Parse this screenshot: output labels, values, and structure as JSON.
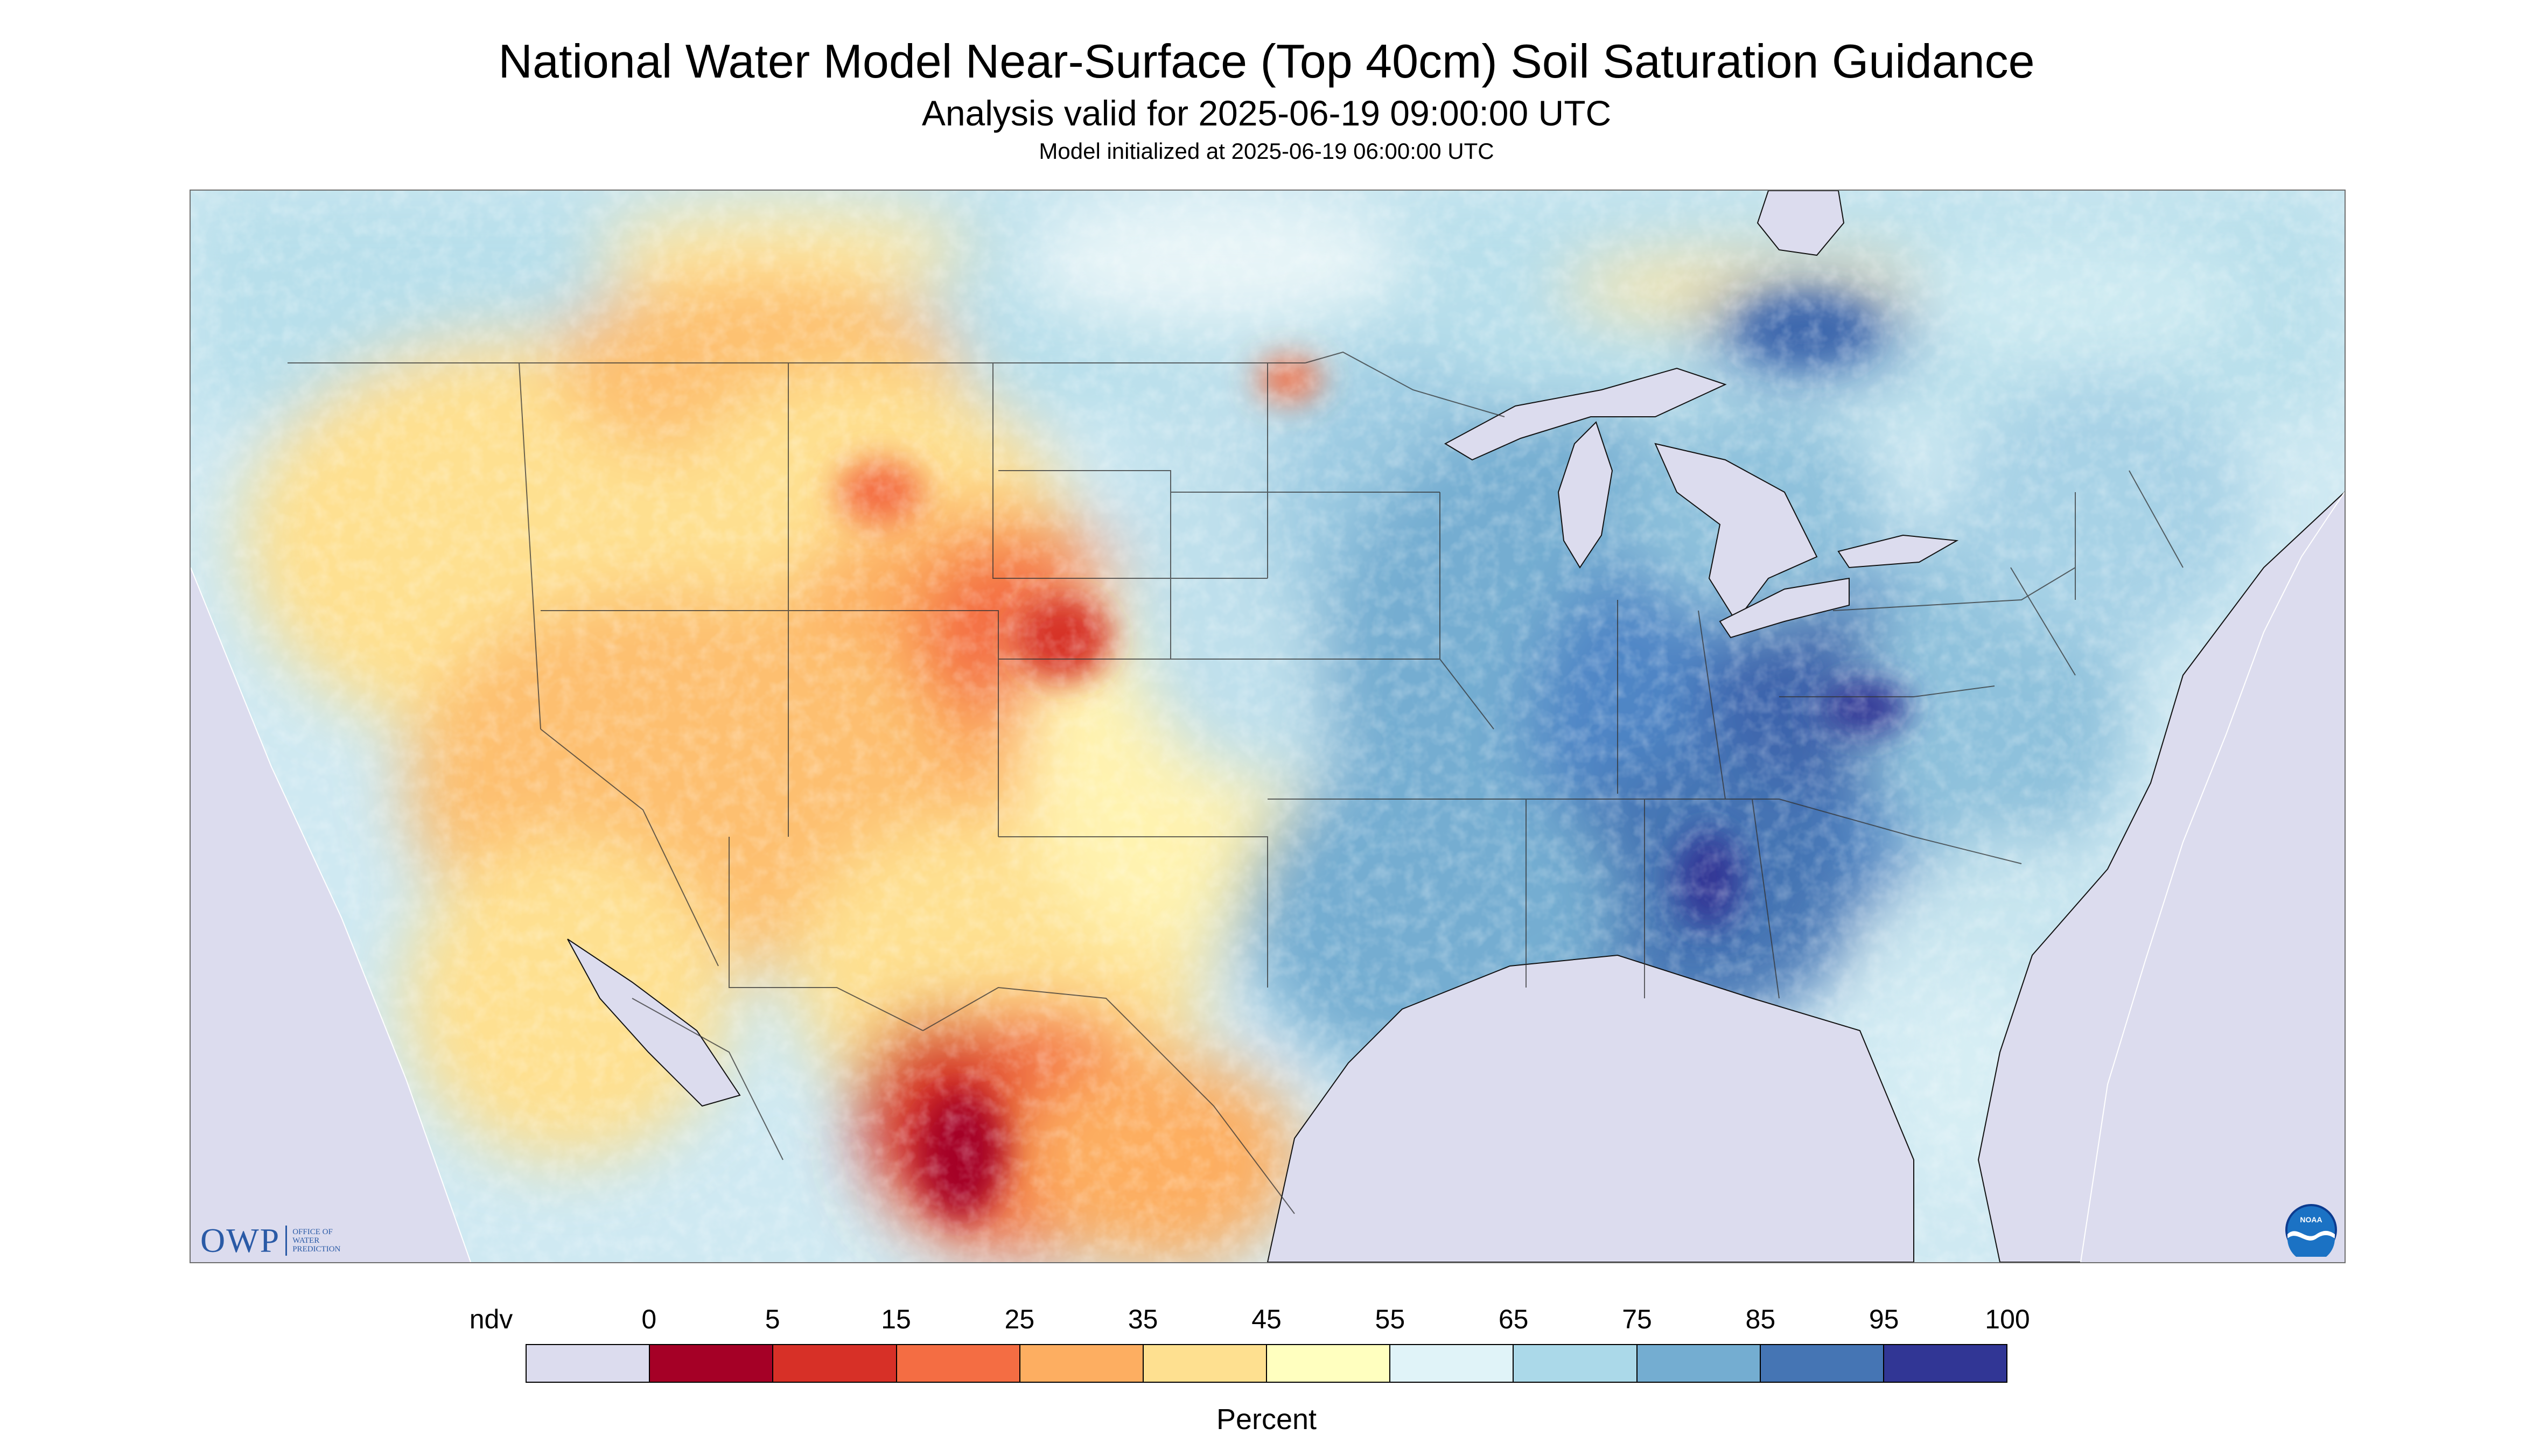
{
  "title": "National Water Model Near-Surface (Top 40cm) Soil Saturation Guidance",
  "subtitle": "Analysis valid for 2025-06-19 09:00:00 UTC",
  "initialized": "Model initialized at 2025-06-19 06:00:00 UTC",
  "map": {
    "region": "CONUS and surrounding North America",
    "background_color": "#dcdcee",
    "water_color": "#dcdcee"
  },
  "legend": {
    "labels": [
      "ndv",
      "0",
      "5",
      "15",
      "25",
      "35",
      "45",
      "55",
      "65",
      "75",
      "85",
      "95",
      "100"
    ],
    "colors": [
      "#dcdcee",
      "#a50026",
      "#d73027",
      "#f46d43",
      "#fdae61",
      "#fee090",
      "#ffffbf",
      "#e0f3f8",
      "#abd9e9",
      "#74add1",
      "#4575b4",
      "#313695"
    ],
    "units": "Percent"
  },
  "logos": {
    "owp_mark": "OWP",
    "owp_text": [
      "Office of",
      "Water",
      "Prediction"
    ],
    "noaa_text": "NOAA"
  }
}
